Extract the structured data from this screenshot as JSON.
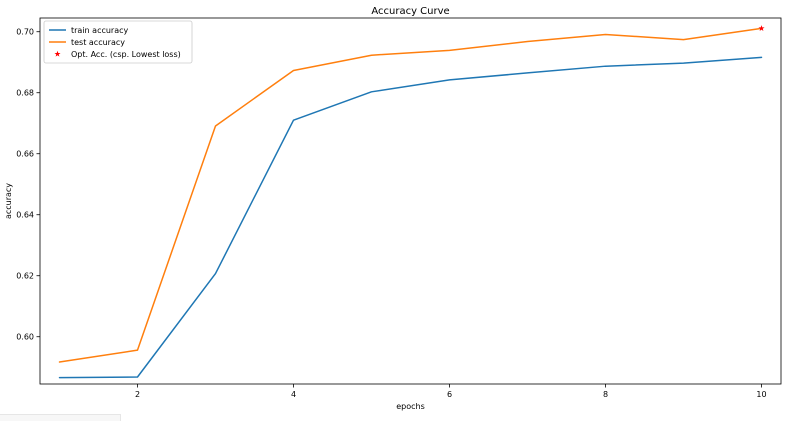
{
  "chart_data": {
    "type": "line",
    "title": "Accuracy Curve",
    "xlabel": "epochs",
    "ylabel": "accuracy",
    "xlim": [
      0.75,
      10.25
    ],
    "ylim": [
      0.5845,
      0.7045
    ],
    "xticks": [
      2,
      4,
      6,
      8,
      10
    ],
    "xtick_labels": [
      "2",
      "4",
      "6",
      "8",
      "10"
    ],
    "yticks": [
      0.6,
      0.62,
      0.64,
      0.66,
      0.68,
      0.7
    ],
    "ytick_labels": [
      "0.60",
      "0.62",
      "0.64",
      "0.66",
      "0.68",
      "0.70"
    ],
    "grid": false,
    "legend_position": "upper-left",
    "x": [
      1,
      2,
      3,
      4,
      5,
      6,
      7,
      8,
      9,
      10
    ],
    "series": [
      {
        "name": "train accuracy",
        "color": "#1f77b4",
        "values": [
          0.5866,
          0.5868,
          0.6207,
          0.671,
          0.6803,
          0.6842,
          0.6865,
          0.6887,
          0.6897,
          0.6916
        ]
      },
      {
        "name": "test accuracy",
        "color": "#ff7f0e",
        "values": [
          0.5917,
          0.5956,
          0.6691,
          0.6873,
          0.6923,
          0.6939,
          0.6968,
          0.6991,
          0.6974,
          0.7011
        ]
      }
    ],
    "markers": [
      {
        "name": "Opt. Acc. (csp. Lowest loss)",
        "color": "#ff0000",
        "symbol": "star",
        "x": 10,
        "y": 0.7011
      }
    ]
  }
}
